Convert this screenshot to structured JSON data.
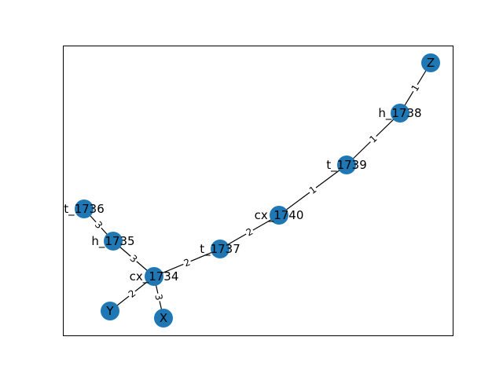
{
  "colors": {
    "node_fill": "#1f77b4",
    "edge": "#000000",
    "frame": "#000000",
    "background": "#ffffff"
  },
  "graph": {
    "nodes": [
      {
        "id": "Z",
        "label": "Z"
      },
      {
        "id": "h_1738",
        "label": "h_1738"
      },
      {
        "id": "t_1739",
        "label": "t_1739"
      },
      {
        "id": "cx_1740",
        "label": "cx_1740"
      },
      {
        "id": "t_1737",
        "label": "t_1737"
      },
      {
        "id": "cx_1734",
        "label": "cx_1734"
      },
      {
        "id": "h_1735",
        "label": "h_1735"
      },
      {
        "id": "t_1736",
        "label": "t_1736"
      },
      {
        "id": "Y",
        "label": "Y"
      },
      {
        "id": "X",
        "label": "X"
      }
    ],
    "edges": [
      {
        "source": "Z",
        "target": "h_1738",
        "label": "1"
      },
      {
        "source": "h_1738",
        "target": "t_1739",
        "label": "1"
      },
      {
        "source": "t_1739",
        "target": "cx_1740",
        "label": "1"
      },
      {
        "source": "cx_1740",
        "target": "t_1737",
        "label": "2"
      },
      {
        "source": "t_1737",
        "target": "cx_1734",
        "label": "2"
      },
      {
        "source": "cx_1734",
        "target": "Y",
        "label": "2"
      },
      {
        "source": "cx_1734",
        "target": "X",
        "label": "3"
      },
      {
        "source": "cx_1734",
        "target": "h_1735",
        "label": "3"
      },
      {
        "source": "h_1735",
        "target": "t_1736",
        "label": "3"
      }
    ]
  }
}
